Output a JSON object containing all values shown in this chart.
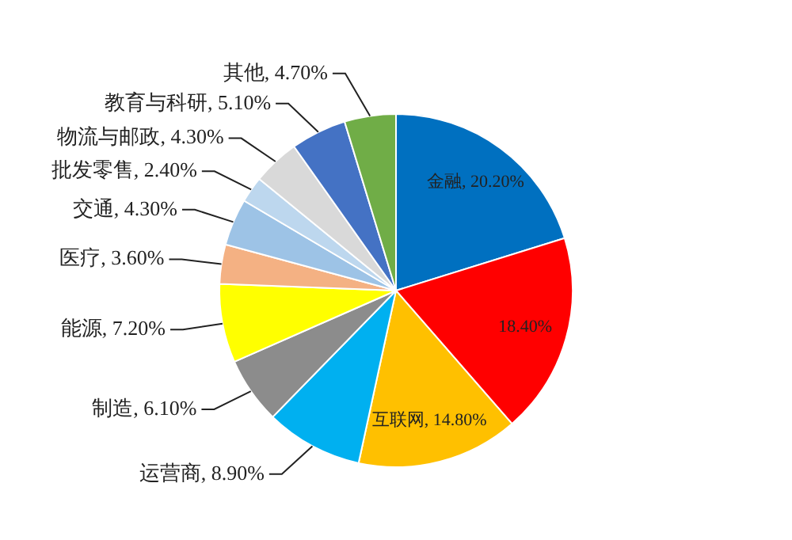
{
  "chart_data": {
    "type": "pie",
    "categories": [
      "金融",
      null,
      "互联网",
      "运营商",
      "制造",
      "能源",
      "医疗",
      "交通",
      "批发零售",
      "物流与邮政",
      "教育与科研",
      "其他"
    ],
    "values": [
      20.2,
      18.4,
      14.8,
      8.9,
      6.1,
      7.2,
      3.6,
      4.3,
      2.4,
      4.3,
      5.1,
      4.7
    ],
    "value_labels": [
      "20.20%",
      "18.40%",
      "14.80%",
      "8.90%",
      "6.10%",
      "7.20%",
      "3.60%",
      "4.30%",
      "2.40%",
      "4.30%",
      "5.10%",
      "4.70%"
    ],
    "colors": [
      "#0070c0",
      "#ff0000",
      "#ffc000",
      "#00b0f0",
      "#8c8c8c",
      "#ffff00",
      "#f4b183",
      "#9dc3e6",
      "#bdd7ee",
      "#d9d9d9",
      "#4472c4",
      "#70ad47"
    ]
  }
}
